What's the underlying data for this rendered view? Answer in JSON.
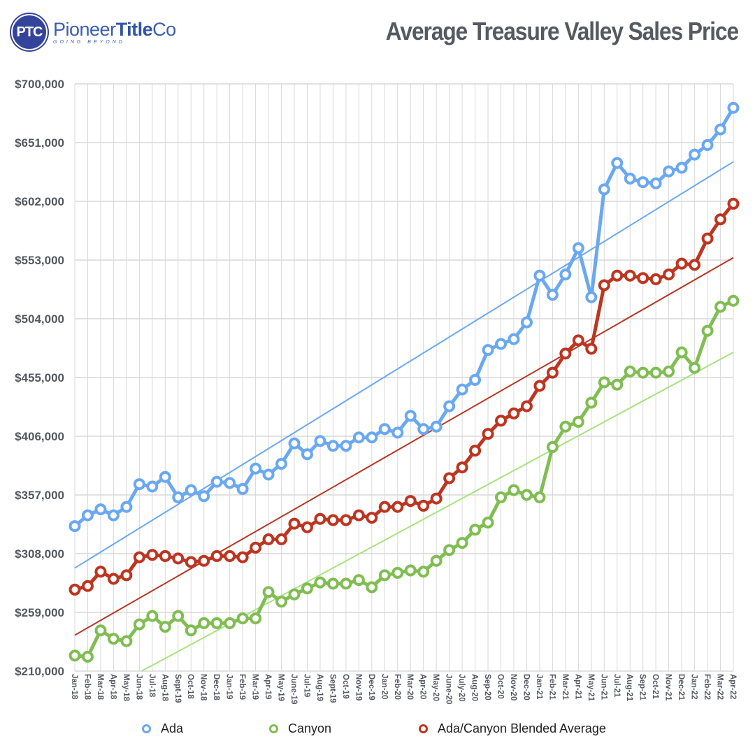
{
  "header": {
    "logo_badge": "PTC",
    "logo_name_regular": "Pioneer",
    "logo_name_bold": "Title",
    "logo_name_suffix": "Co",
    "logo_tagline": "GOING BEYOND",
    "title": "Average Treasure Valley Sales Price"
  },
  "colors": {
    "ada": "#6aa8f2",
    "canyon": "#80bd52",
    "blended": "#bd3520",
    "ada_trend": "#6aa8f2",
    "canyon_trend": "#a7e37e",
    "blended_trend": "#b83622",
    "grid": "#d9d9d9"
  },
  "legend": [
    {
      "label": "Ada",
      "color": "#6aa8f2"
    },
    {
      "label": "Canyon",
      "color": "#80bd52"
    },
    {
      "label": "Ada/Canyon Blended Average",
      "color": "#bd3520"
    }
  ],
  "chart_data": {
    "type": "line",
    "title": "Average Treasure Valley Sales Price",
    "xlabel": "",
    "ylabel": "",
    "ylim": [
      210000,
      700000
    ],
    "yticks": [
      210000,
      259000,
      308000,
      357000,
      406000,
      455000,
      504000,
      553000,
      602000,
      651000,
      700000
    ],
    "ytick_labels": [
      "$210,000",
      "$259,000",
      "$308,000",
      "$357,000",
      "$406,000",
      "$455,000",
      "$504,000",
      "$553,000",
      "$602,000",
      "$651,000",
      "$700,000"
    ],
    "grid": true,
    "legend_position": "bottom",
    "categories": [
      "Jan-18",
      "Feb-18",
      "Mar-18",
      "Apr-18",
      "May-18",
      "Jun-18",
      "Jul-18",
      "Aug-18",
      "Sept-19",
      "Oct-18",
      "Nov-18",
      "Dec-18",
      "Jan-19",
      "Feb-19",
      "Mar-19",
      "Apr-19",
      "May-19",
      "June-19",
      "Jul-19",
      "Aug-19",
      "Sept-19",
      "Oct-19",
      "Nov-19",
      "Dec-19",
      "Jan-20",
      "Feb-20",
      "Mar-20",
      "Apr-20",
      "May-20",
      "June-20",
      "July-20",
      "Aug-20",
      "Sep-20",
      "Oct-20",
      "Nov-20",
      "Dec-20",
      "Jan-21",
      "Feb-21",
      "Mar-21",
      "Apr-21",
      "May-21",
      "Jun-21",
      "Jul-21",
      "Aug-21",
      "Sep-21",
      "Oct-21",
      "Nov-21",
      "Dec-21",
      "Jan-22",
      "Feb-22",
      "Mar-22",
      "Apr-22"
    ],
    "series": [
      {
        "name": "Ada",
        "values": [
          331000,
          340000,
          345000,
          340000,
          347000,
          366000,
          364000,
          372000,
          355000,
          361000,
          356000,
          368000,
          367000,
          362000,
          379000,
          374000,
          383000,
          400000,
          391000,
          402000,
          398000,
          398000,
          405000,
          405000,
          412000,
          409000,
          423000,
          412000,
          414000,
          431000,
          445000,
          453000,
          478000,
          483000,
          487000,
          501000,
          540000,
          524000,
          541000,
          563000,
          522000,
          612000,
          634000,
          621000,
          618000,
          617000,
          627000,
          630000,
          641000,
          649000,
          662000,
          680000
        ]
      },
      {
        "name": "Canyon",
        "values": [
          223000,
          222000,
          244000,
          237000,
          235000,
          249000,
          256000,
          247000,
          256000,
          244000,
          250000,
          250000,
          250000,
          254000,
          254000,
          276000,
          268000,
          274000,
          279000,
          284000,
          283000,
          283000,
          286000,
          280000,
          290000,
          292000,
          294000,
          293000,
          302000,
          311000,
          317000,
          328000,
          334000,
          355000,
          361000,
          357000,
          355000,
          397000,
          414000,
          418000,
          434000,
          451000,
          449000,
          460000,
          459000,
          459000,
          460000,
          476000,
          463000,
          494000,
          514000,
          519000
        ]
      },
      {
        "name": "Ada/Canyon Blended Average",
        "values": [
          278000,
          281000,
          293000,
          287000,
          290000,
          305000,
          307000,
          306000,
          304000,
          301000,
          302000,
          306000,
          306000,
          305000,
          313000,
          320000,
          320000,
          333000,
          330000,
          337000,
          336000,
          336000,
          340000,
          338000,
          347000,
          347000,
          352000,
          348000,
          354000,
          371000,
          380000,
          394000,
          408000,
          419000,
          425000,
          431000,
          448000,
          459000,
          475000,
          486000,
          479000,
          532000,
          540000,
          540000,
          538000,
          537000,
          541000,
          550000,
          549000,
          571000,
          587000,
          600000
        ]
      }
    ],
    "trendlines": [
      {
        "name": "Ada trend",
        "start": 296000,
        "end": 635000
      },
      {
        "name": "Blended trend",
        "start": 240000,
        "end": 555000
      },
      {
        "name": "Canyon trend",
        "start": 180000,
        "end": 476000
      }
    ]
  }
}
